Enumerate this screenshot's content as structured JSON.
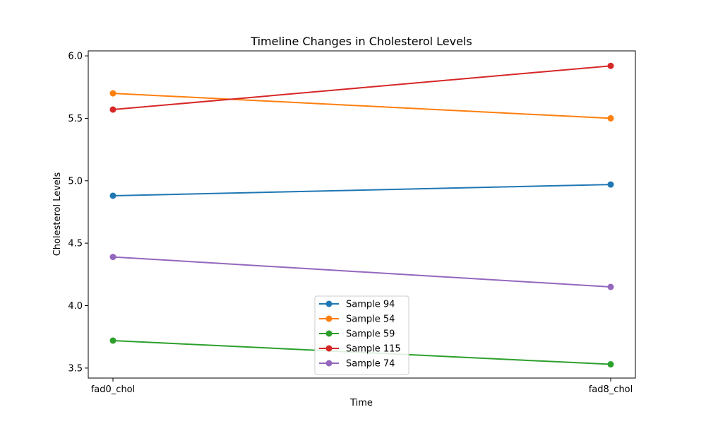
{
  "chart_data": {
    "type": "line",
    "title": "Timeline Changes in Cholesterol Levels",
    "xlabel": "Time",
    "ylabel": "Cholesterol Levels",
    "categories": [
      "fad0_chol",
      "fad8_chol"
    ],
    "ylim": [
      3.42,
      6.04
    ],
    "yticks": [
      3.5,
      4.0,
      4.5,
      5.0,
      5.5,
      6.0
    ],
    "ytick_labels": [
      "3.5",
      "4.0",
      "4.5",
      "5.0",
      "5.5",
      "6.0"
    ],
    "grid": false,
    "legend_position": "lower-center",
    "series": [
      {
        "name": "Sample 94",
        "values": [
          4.88,
          4.97
        ],
        "color": "#1f77b4"
      },
      {
        "name": "Sample 54",
        "values": [
          5.7,
          5.5
        ],
        "color": "#ff7f0e"
      },
      {
        "name": "Sample 59",
        "values": [
          3.72,
          3.53
        ],
        "color": "#2ca02c"
      },
      {
        "name": "Sample 115",
        "values": [
          5.57,
          5.92
        ],
        "color": "#d62728"
      },
      {
        "name": "Sample 74",
        "values": [
          4.39,
          4.15
        ],
        "color": "#9467bd"
      }
    ]
  }
}
